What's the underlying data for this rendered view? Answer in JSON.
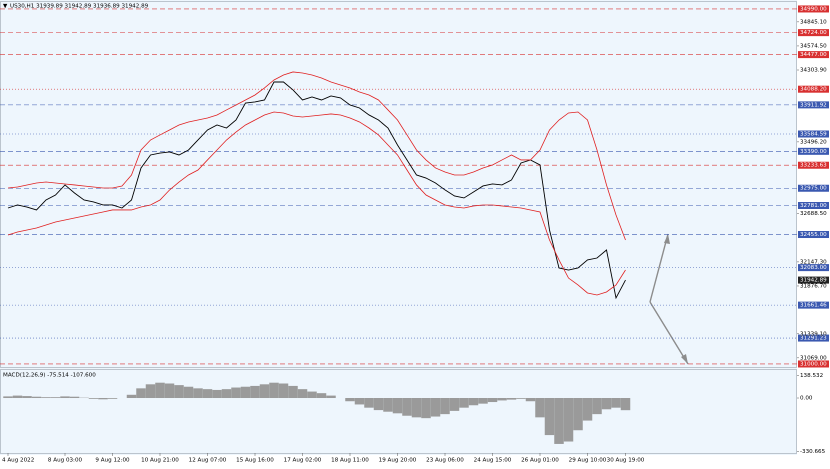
{
  "header": "US30,H1  31939.89 31942.89 31936.89 31942.89",
  "chart_data": [
    {
      "type": "line",
      "categories": [
        "4 Aug 2022",
        null,
        null,
        null,
        null,
        null,
        "8 Aug 03:00",
        null,
        null,
        null,
        null,
        "9 Aug 12:00",
        null,
        null,
        null,
        null,
        "10 Aug 21:00",
        null,
        null,
        null,
        null,
        "12 Aug 07:00",
        null,
        null,
        null,
        null,
        "15 Aug 16:00",
        null,
        null,
        null,
        null,
        "17 Aug 02:00",
        null,
        null,
        null,
        null,
        "18 Aug 11:00",
        null,
        null,
        null,
        null,
        "19 Aug 20:00",
        null,
        null,
        null,
        null,
        "23 Aug 06:00",
        null,
        null,
        null,
        null,
        "24 Aug 15:00",
        null,
        null,
        null,
        null,
        "26 Aug 01:00",
        null,
        null,
        null,
        null,
        "29 Aug 10:00",
        null,
        null,
        null,
        "30 Aug 19:00"
      ],
      "series": [
        {
          "color": "#000000",
          "values": [
            32753,
            32787,
            32764,
            32731,
            32843,
            32899,
            33012,
            32922,
            32843,
            32821,
            32787,
            32787,
            32753,
            32843,
            33203,
            33349,
            33371,
            33383,
            33349,
            33405,
            33518,
            33630,
            33686,
            33652,
            33742,
            33933,
            33945,
            33967,
            34169,
            34169,
            34080,
            33967,
            34001,
            33967,
            34012,
            33990,
            33911,
            33877,
            33799,
            33742,
            33652,
            33461,
            33293,
            33124,
            33090,
            33034,
            32956,
            32888,
            32866,
            32933,
            33001,
            33023,
            33012,
            33068,
            33259,
            33293,
            33237,
            32506,
            32079,
            32056,
            32079,
            32169,
            32191,
            32281,
            31742,
            31942.89
          ]
        },
        {
          "color": "#e02020",
          "values": [
            32978,
            32989,
            33012,
            33034,
            33045,
            33034,
            33023,
            33012,
            33000,
            32989,
            32978,
            32978,
            33000,
            33124,
            33405,
            33517,
            33574,
            33630,
            33686,
            33720,
            33742,
            33765,
            33798,
            33855,
            33911,
            33967,
            34023,
            34102,
            34192,
            34248,
            34282,
            34270,
            34248,
            34214,
            34169,
            34136,
            34102,
            34057,
            34023,
            33967,
            33855,
            33742,
            33574,
            33405,
            33293,
            33203,
            33158,
            33124,
            33124,
            33158,
            33203,
            33236,
            33293,
            33349,
            33293,
            33293,
            33405,
            33630,
            33742,
            33821,
            33832,
            33742,
            33405,
            33012,
            32674,
            32393
          ]
        },
        {
          "color": "#e02020",
          "values": [
            32450,
            32483,
            32506,
            32528,
            32562,
            32596,
            32618,
            32641,
            32663,
            32686,
            32708,
            32731,
            32731,
            32731,
            32764,
            32787,
            32843,
            32955,
            33045,
            33124,
            33180,
            33293,
            33405,
            33517,
            33607,
            33686,
            33742,
            33798,
            33832,
            33821,
            33787,
            33776,
            33787,
            33798,
            33810,
            33798,
            33765,
            33720,
            33652,
            33574,
            33461,
            33349,
            33180,
            33012,
            32899,
            32843,
            32787,
            32764,
            32753,
            32776,
            32787,
            32787,
            32776,
            32764,
            32753,
            32731,
            32708,
            32393,
            32169,
            31966,
            31888,
            31798,
            31775,
            31809,
            31888,
            32056
          ]
        }
      ],
      "ylim": [
        30966,
        35057
      ],
      "yticks": [
        {
          "value": 34845.1,
          "label": "34845.10"
        },
        {
          "value": 34574.5,
          "label": "34574.50"
        },
        {
          "value": 34303.9,
          "label": "34303.90"
        },
        {
          "value": 33496.2,
          "label": "33496.20"
        },
        {
          "value": 32688.5,
          "label": "32688.50"
        },
        {
          "value": 32147.3,
          "label": "32147.30"
        },
        {
          "value": 31876.7,
          "label": "31876.70"
        },
        {
          "value": 31339.1,
          "label": "31339.10"
        },
        {
          "value": 31069,
          "label": "31069.00"
        }
      ],
      "levels": [
        {
          "value": 34990,
          "label": "34990.00",
          "color": "#d83030",
          "style": "dash"
        },
        {
          "value": 34724,
          "label": "34724.00",
          "color": "#d83030",
          "style": "dash"
        },
        {
          "value": 34477,
          "label": "34477.00",
          "color": "#d83030",
          "style": "dash"
        },
        {
          "value": 34088.2,
          "label": "34088.20",
          "color": "#d83030",
          "style": "dot"
        },
        {
          "value": 33911.92,
          "label": "33911.92",
          "color": "#3a58b0",
          "style": "dash"
        },
        {
          "value": 33584.59,
          "label": "33584.59",
          "color": "#3a58b0",
          "style": "dot"
        },
        {
          "value": 33390,
          "label": "33390.00",
          "color": "#3a58b0",
          "style": "dash"
        },
        {
          "value": 33233.63,
          "label": "33233.63",
          "color": "#d83030",
          "style": "dash"
        },
        {
          "value": 32975,
          "label": "32975.00",
          "color": "#3a58b0",
          "style": "dash"
        },
        {
          "value": 32781,
          "label": "32781.00",
          "color": "#3a58b0",
          "style": "dash"
        },
        {
          "value": 32455,
          "label": "32455.00",
          "color": "#3a58b0",
          "style": "dash"
        },
        {
          "value": 32083,
          "label": "32083.00",
          "color": "#3a58b0",
          "style": "dot"
        },
        {
          "value": 31661.46,
          "label": "31661.46",
          "color": "#3a58b0",
          "style": "dot"
        },
        {
          "value": 31291.23,
          "label": "31291.23",
          "color": "#3a58b0",
          "style": "dot"
        },
        {
          "value": 31000,
          "label": "31000.00",
          "color": "#d83030",
          "style": "dash"
        }
      ]
    },
    {
      "type": "bar",
      "title": "MACD(12,26,9) -75.514 -107.600",
      "values": [
        10,
        15,
        12,
        8,
        5,
        5,
        10,
        8,
        2,
        -5,
        -8,
        -5,
        0,
        20,
        60,
        85,
        95,
        90,
        80,
        70,
        60,
        55,
        50,
        55,
        65,
        70,
        75,
        85,
        95,
        90,
        75,
        55,
        40,
        30,
        15,
        0,
        -20,
        -40,
        -60,
        -75,
        -85,
        -95,
        -110,
        -120,
        -125,
        -115,
        -100,
        -80,
        -60,
        -45,
        -35,
        -25,
        -15,
        -10,
        -5,
        -20,
        -120,
        -230,
        -285,
        -270,
        -200,
        -140,
        -100,
        -70,
        -60,
        -75.514
      ],
      "color": "#9a9a9a",
      "ylim": [
        -335,
        180
      ],
      "yticks": [
        138.532,
        {
          "value": 0,
          "label": "0.00"
        },
        -330.665
      ]
    }
  ]
}
